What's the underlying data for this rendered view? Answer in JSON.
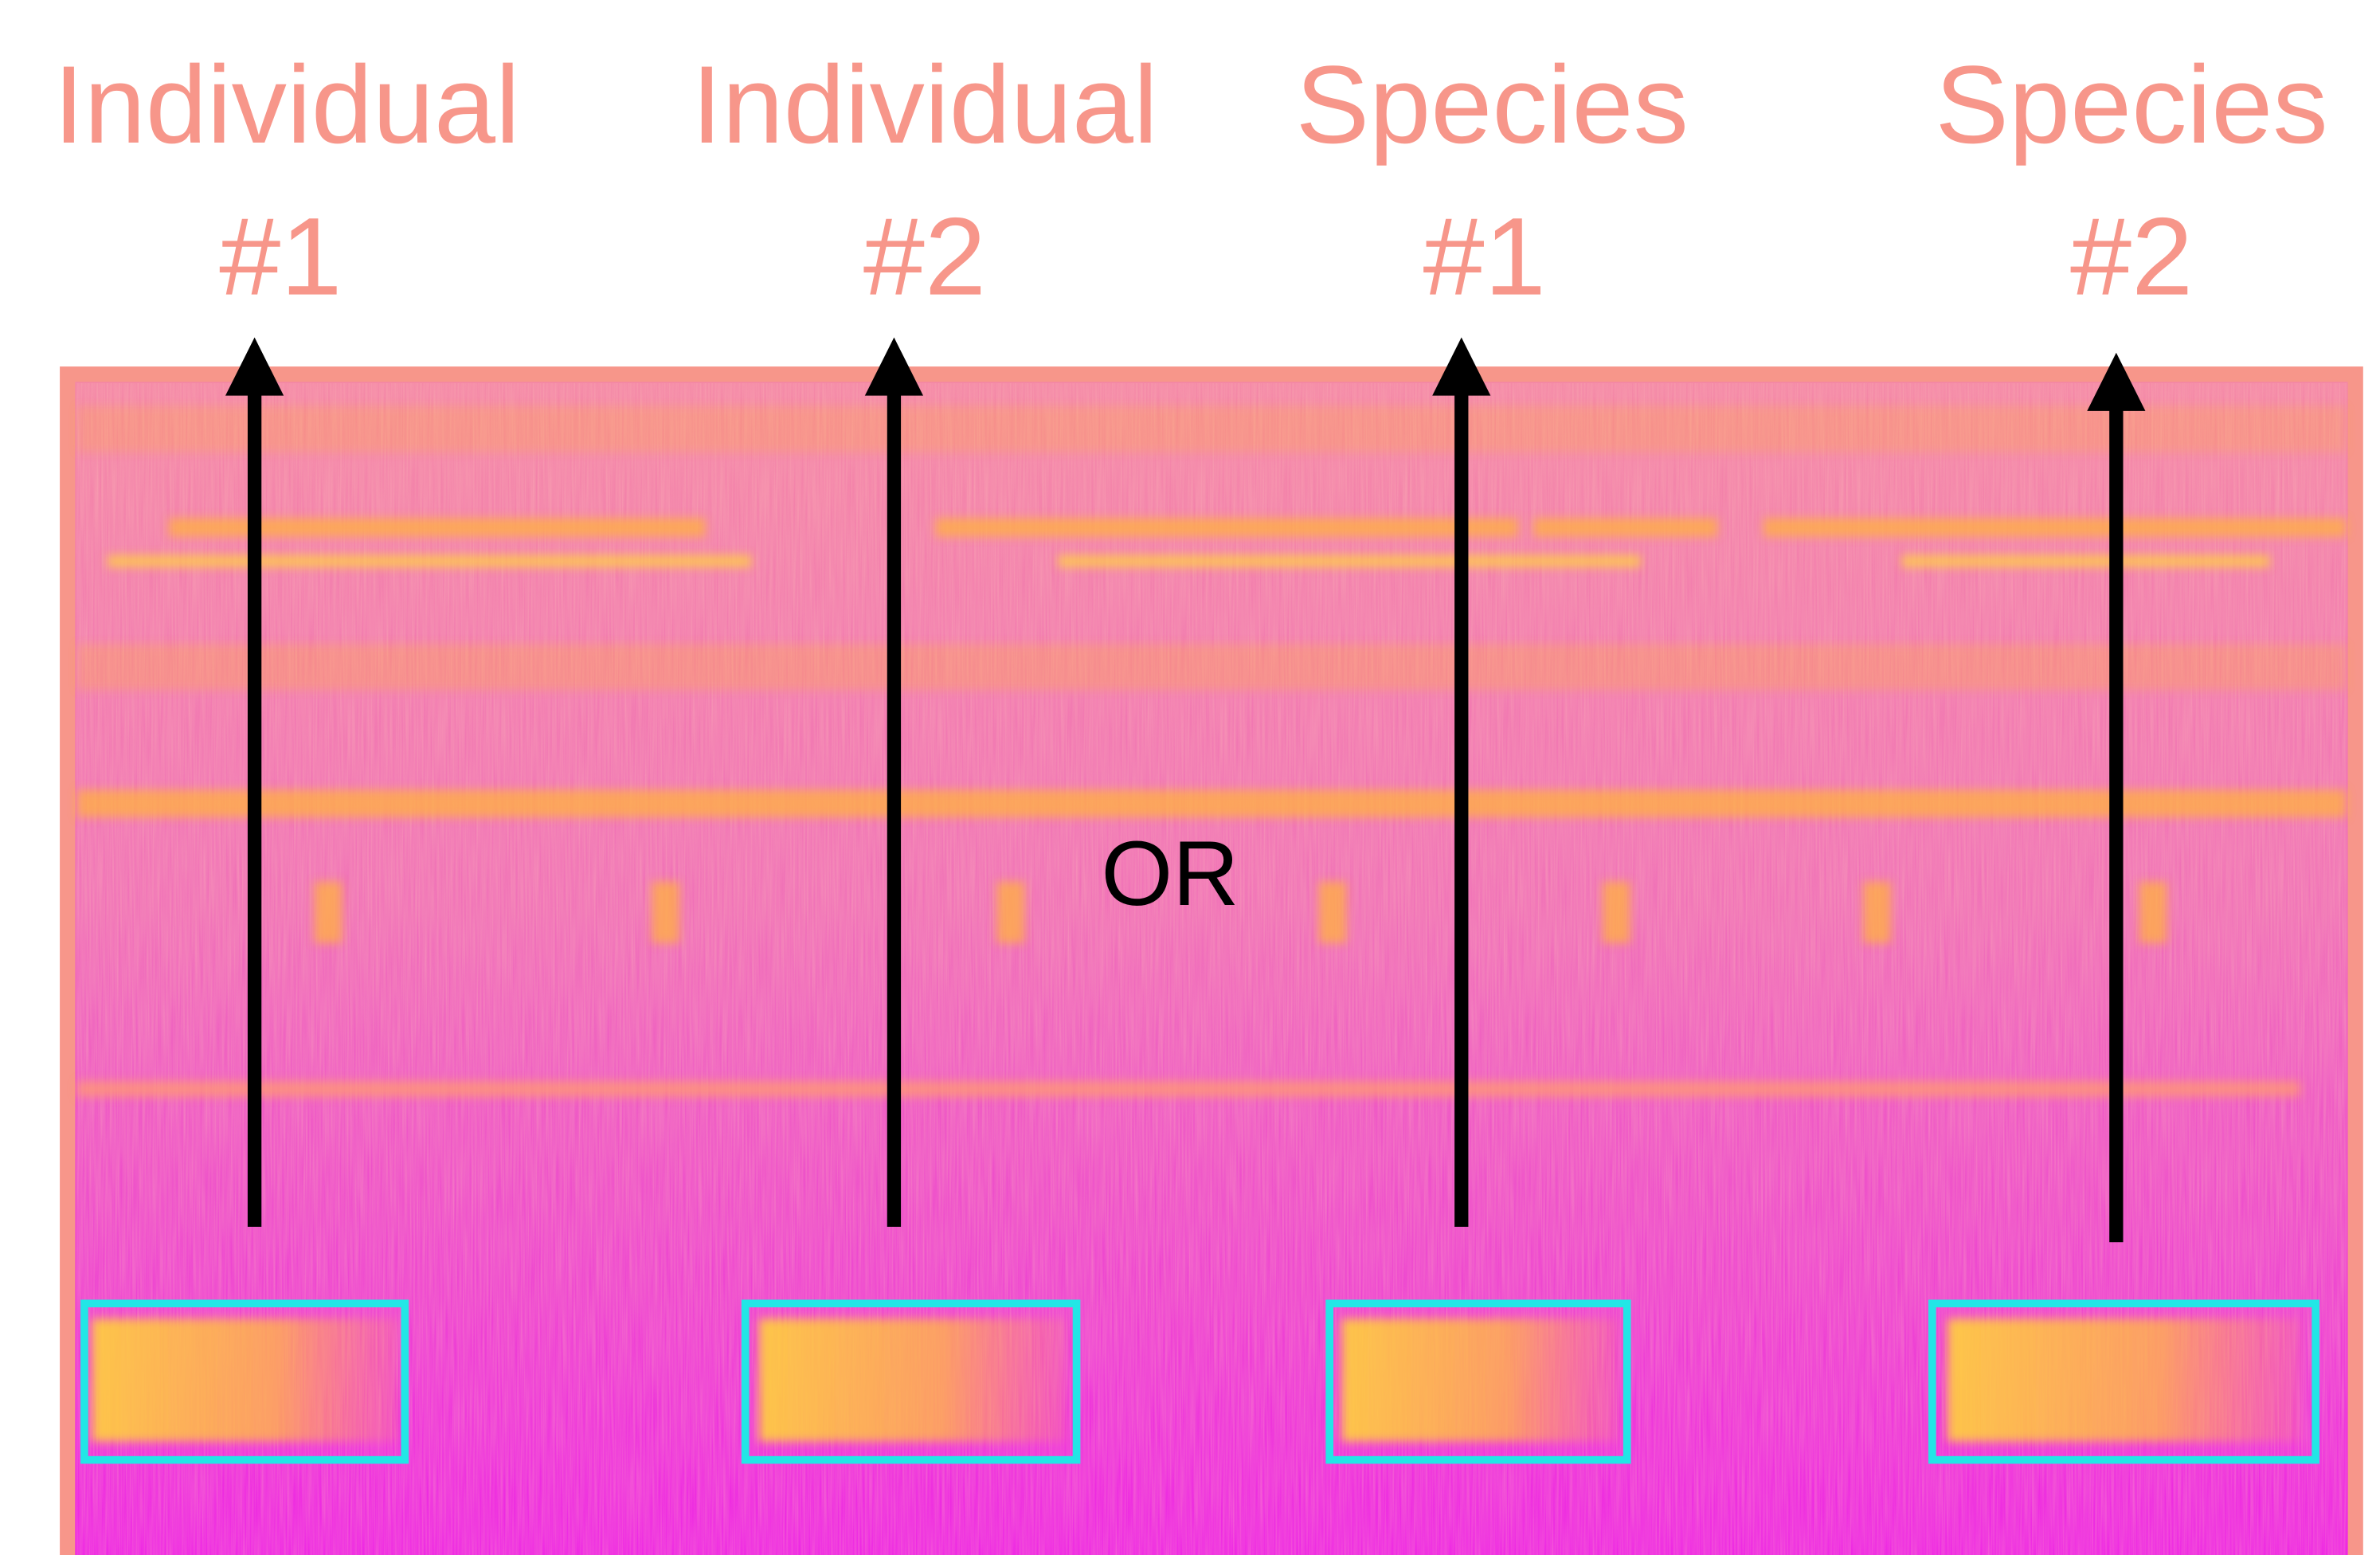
{
  "labels": [
    {
      "name": "Individual",
      "number": "#1"
    },
    {
      "name": "Individual",
      "number": "#2"
    },
    {
      "name": "Species",
      "number": "#1"
    },
    {
      "name": "Species",
      "number": "#2"
    }
  ],
  "center_text": "OR"
}
